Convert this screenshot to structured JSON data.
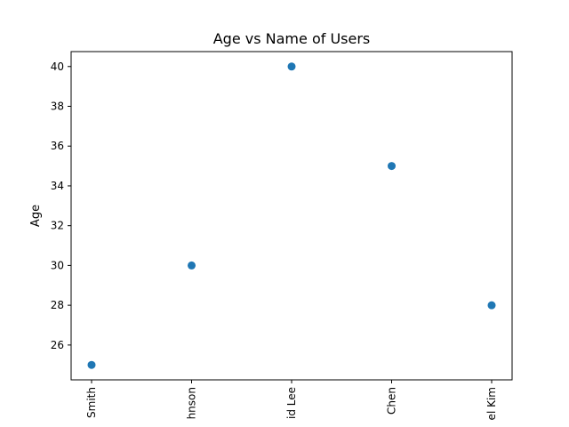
{
  "chart_data": {
    "type": "scatter",
    "title": "Age vs Name of Users",
    "xlabel": "",
    "ylabel": "Age",
    "categories": [
      "Smith",
      "hnson",
      "id Lee",
      "Chen",
      "el Kim"
    ],
    "series": [
      {
        "values": [
          25,
          30,
          40,
          35,
          28
        ],
        "color": "#1f77b4"
      }
    ],
    "ylim": [
      24.25,
      40.75
    ],
    "yticks": [
      26,
      28,
      30,
      32,
      34,
      36,
      38,
      40
    ],
    "grid": false
  }
}
